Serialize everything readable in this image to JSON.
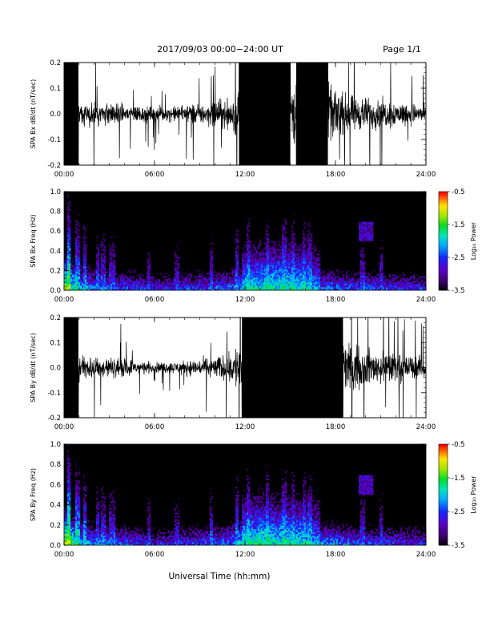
{
  "header": {
    "title": "2017/09/03  00:00−24:00 UT",
    "page": "Page 1/1"
  },
  "xlabel": "Universal Time (hh:mm)",
  "colors": {
    "background": "#ffffff",
    "trace": "#000000",
    "spectrogram_background": "#000000"
  },
  "chart_data": [
    {
      "type": "line",
      "title": "",
      "ylabel": "SPA Bx dB/dt (nT/sec)",
      "xlabel": "",
      "xlim": [
        0,
        24
      ],
      "ylim": [
        -0.2,
        0.2
      ],
      "x_ticks": [
        "00:00",
        "06:00",
        "12:00",
        "18:00",
        "24:00"
      ],
      "y_ticks": [
        "-0.2",
        "-0.1",
        "0.0",
        "0.1",
        "0.2"
      ],
      "grid": false,
      "legend": "none",
      "envelope_hours": [
        0,
        1,
        2,
        3,
        4,
        5,
        6,
        7,
        8,
        9,
        10,
        11,
        12,
        13,
        14,
        15,
        16,
        17,
        18,
        19,
        20,
        21,
        22,
        23,
        24
      ],
      "envelope_amplitude": [
        0.2,
        0.06,
        0.07,
        0.06,
        0.05,
        0.05,
        0.04,
        0.04,
        0.05,
        0.06,
        0.07,
        0.09,
        0.2,
        0.2,
        0.2,
        0.2,
        0.2,
        0.2,
        0.12,
        0.1,
        0.09,
        0.08,
        0.07,
        0.06,
        0.05
      ],
      "saturated_intervals": [
        [
          0.0,
          0.95
        ],
        [
          11.6,
          15.0
        ],
        [
          15.4,
          17.5
        ]
      ]
    },
    {
      "type": "heatmap",
      "title": "",
      "ylabel": "SPA Bx Freq (Hz)",
      "xlabel": "",
      "xlim": [
        0,
        24
      ],
      "ylim": [
        0,
        1.0
      ],
      "x_ticks": [
        "00:00",
        "06:00",
        "12:00",
        "18:00",
        "24:00"
      ],
      "y_ticks": [
        "0.0",
        "0.2",
        "0.4",
        "0.6",
        "0.8",
        "1.0"
      ],
      "colorbar": {
        "label": "Log₁₀ Power",
        "range": [
          -3.5,
          -0.5
        ],
        "ticks": [
          "-0.5",
          "-1.5",
          "-2.5",
          "-3.5"
        ]
      },
      "activity_hours": [
        0,
        1,
        2,
        3,
        4,
        5,
        6,
        7,
        8,
        9,
        10,
        11,
        12,
        13,
        14,
        15,
        16,
        17,
        18,
        19,
        20,
        21,
        22,
        23,
        24
      ],
      "low_freq_log_power": [
        -1.0,
        -1.9,
        -2.2,
        -2.3,
        -2.4,
        -2.4,
        -2.6,
        -2.6,
        -2.5,
        -2.4,
        -2.3,
        -2.3,
        -1.9,
        -1.8,
        -1.8,
        -1.8,
        -1.9,
        -2.2,
        -2.3,
        -2.4,
        -2.4,
        -2.4,
        -2.5,
        -2.5,
        -2.6
      ]
    },
    {
      "type": "line",
      "title": "",
      "ylabel": "SPA By dB/dt (nT/sec)",
      "xlabel": "",
      "xlim": [
        0,
        24
      ],
      "ylim": [
        -0.2,
        0.2
      ],
      "x_ticks": [
        "00:00",
        "06:00",
        "12:00",
        "18:00",
        "24:00"
      ],
      "y_ticks": [
        "-0.2",
        "-0.1",
        "0.0",
        "0.1",
        "0.2"
      ],
      "grid": false,
      "legend": "none",
      "envelope_hours": [
        0,
        1,
        2,
        3,
        4,
        5,
        6,
        7,
        8,
        9,
        10,
        11,
        12,
        13,
        14,
        15,
        16,
        17,
        18,
        19,
        20,
        21,
        22,
        23,
        24
      ],
      "envelope_amplitude": [
        0.2,
        0.07,
        0.07,
        0.06,
        0.05,
        0.04,
        0.03,
        0.03,
        0.04,
        0.05,
        0.06,
        0.08,
        0.2,
        0.2,
        0.2,
        0.2,
        0.2,
        0.2,
        0.2,
        0.12,
        0.1,
        0.09,
        0.08,
        0.07,
        0.06
      ],
      "saturated_intervals": [
        [
          0.0,
          0.95
        ],
        [
          11.8,
          18.5
        ]
      ]
    },
    {
      "type": "heatmap",
      "title": "",
      "ylabel": "SPA By Freq (Hz)",
      "xlabel": "",
      "xlim": [
        0,
        24
      ],
      "ylim": [
        0,
        1.0
      ],
      "x_ticks": [
        "00:00",
        "06:00",
        "12:00",
        "18:00",
        "24:00"
      ],
      "y_ticks": [
        "0.0",
        "0.2",
        "0.4",
        "0.6",
        "0.8",
        "1.0"
      ],
      "colorbar": {
        "label": "Log₁₀ Power",
        "range": [
          -3.5,
          -0.5
        ],
        "ticks": [
          "-0.5",
          "-1.5",
          "-2.5",
          "-3.5"
        ]
      },
      "activity_hours": [
        0,
        1,
        2,
        3,
        4,
        5,
        6,
        7,
        8,
        9,
        10,
        11,
        12,
        13,
        14,
        15,
        16,
        17,
        18,
        19,
        20,
        21,
        22,
        23,
        24
      ],
      "low_freq_log_power": [
        -0.9,
        -1.8,
        -2.2,
        -2.3,
        -2.4,
        -2.5,
        -2.6,
        -2.6,
        -2.5,
        -2.4,
        -2.3,
        -2.2,
        -1.8,
        -1.7,
        -1.8,
        -1.8,
        -1.9,
        -2.1,
        -2.2,
        -2.3,
        -2.4,
        -2.4,
        -2.5,
        -2.5,
        -2.6
      ]
    }
  ]
}
